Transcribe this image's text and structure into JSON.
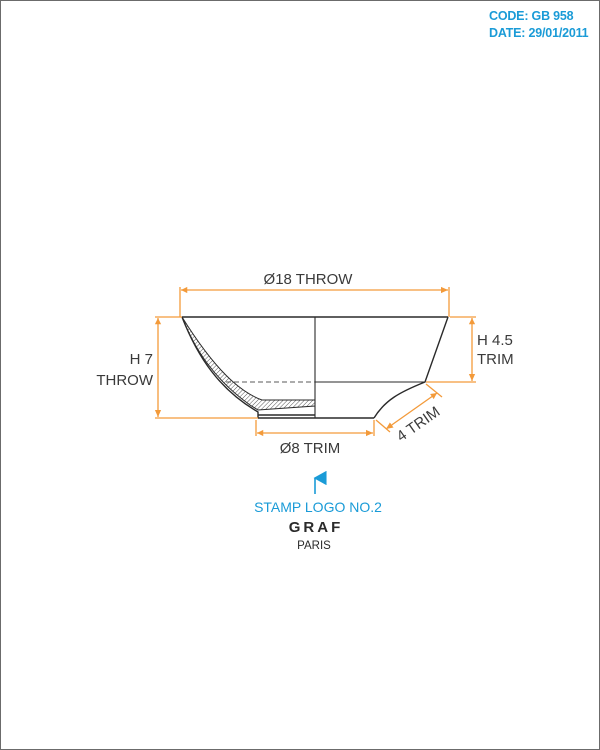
{
  "header": {
    "code": "CODE: GB 958",
    "date": "DATE: 29/01/2011"
  },
  "dimensions": {
    "diameter_throw": "Ø18 THROW",
    "height_throw_line1": "H 7",
    "height_throw_line2": "THROW",
    "height_trim_line1": "H 4.5",
    "height_trim_line2": "TRIM",
    "diameter_trim": "Ø8 TRIM",
    "side_trim": "4 TRIM"
  },
  "stamp": {
    "label": "STAMP LOGO NO.2",
    "brand": "GRAF",
    "city": "PARIS"
  },
  "colors": {
    "dimension": "#f39a3a",
    "accent": "#1a9bd7",
    "outline": "#2a2a2a"
  }
}
